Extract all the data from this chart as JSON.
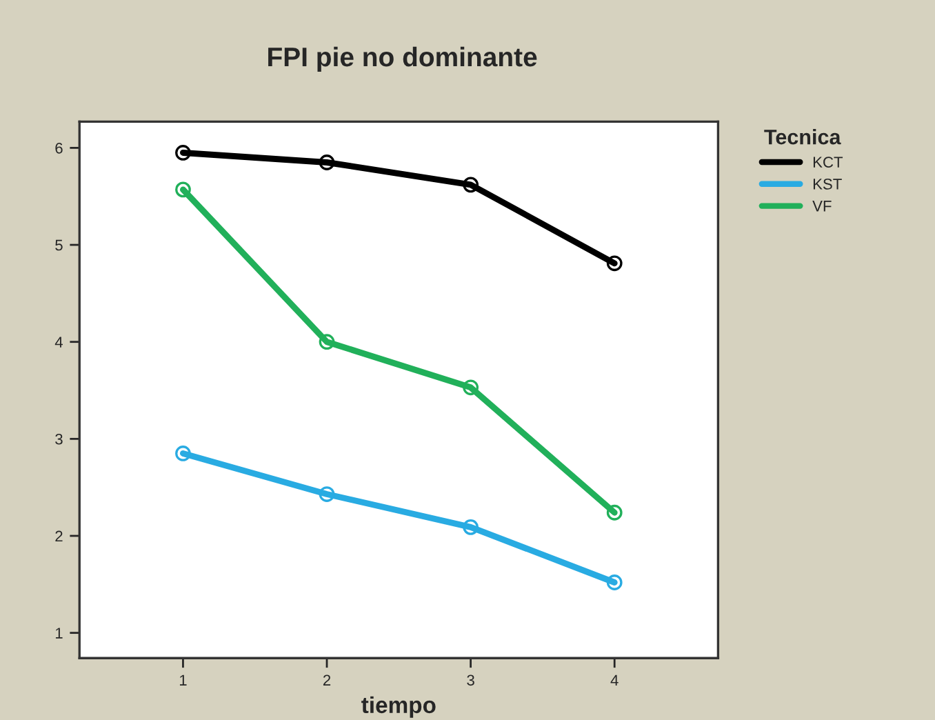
{
  "chart_data": {
    "type": "line",
    "title": "FPI pie no dominante",
    "xlabel": "tiempo",
    "legend_title": "Tecnica",
    "x": [
      1,
      2,
      3,
      4
    ],
    "series": [
      {
        "name": "KCT",
        "color": "#000000",
        "values": [
          5.95,
          5.85,
          5.62,
          4.81
        ]
      },
      {
        "name": "KST",
        "color": "#29abe2",
        "values": [
          2.85,
          2.43,
          2.09,
          1.52
        ]
      },
      {
        "name": "VF",
        "color": "#21b05a",
        "values": [
          5.57,
          4.0,
          3.53,
          2.24
        ]
      }
    ],
    "xlim": [
      0.28,
      4.72
    ],
    "xticks": [
      1,
      2,
      3,
      4
    ],
    "ylim": [
      0.74,
      6.27
    ],
    "yticks": [
      1,
      2,
      3,
      4,
      5,
      6
    ],
    "grid": false,
    "legend": "top right",
    "marker": "circle",
    "line_style": "solid"
  }
}
